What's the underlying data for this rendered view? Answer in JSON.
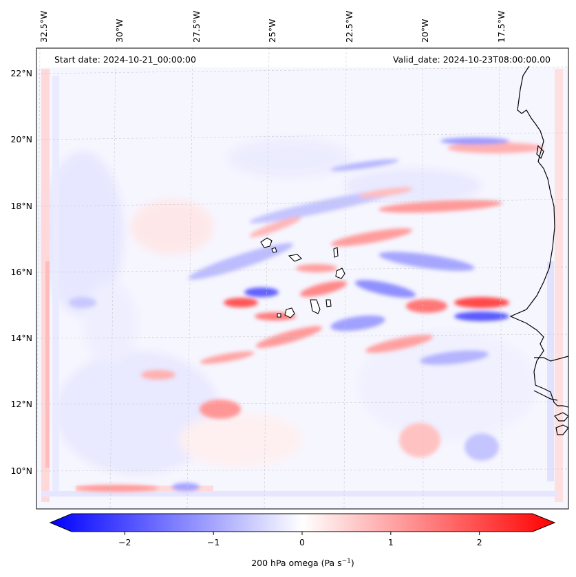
{
  "header": {
    "start_date": "Start date: 2024-10-21_00:00:00",
    "valid_date": "Valid_date: 2024-10-23T08:00:00.00"
  },
  "map": {
    "longitude_labels": [
      "32.5°W",
      "30°W",
      "27.5°W",
      "25°W",
      "22.5°W",
      "20°W",
      "17.5°W"
    ],
    "latitude_labels": [
      "22°N",
      "20°N",
      "18°N",
      "16°N",
      "14°N",
      "12°N",
      "10°N"
    ],
    "colormap": "bwr",
    "colors": {
      "negative": "#0000ff",
      "zero": "#ffffff",
      "positive": "#ff0000",
      "coastline": "#000000"
    }
  },
  "colorbar": {
    "ticks": [
      "−2",
      "−1",
      "0",
      "1",
      "2"
    ],
    "tick_values": [
      -2,
      -1,
      0,
      1,
      2
    ],
    "range": [
      -2.6,
      2.6
    ],
    "extend": "both",
    "label_main": "200 hPa omega (Pa s",
    "label_exp": "−1",
    "label_close": ")"
  }
}
